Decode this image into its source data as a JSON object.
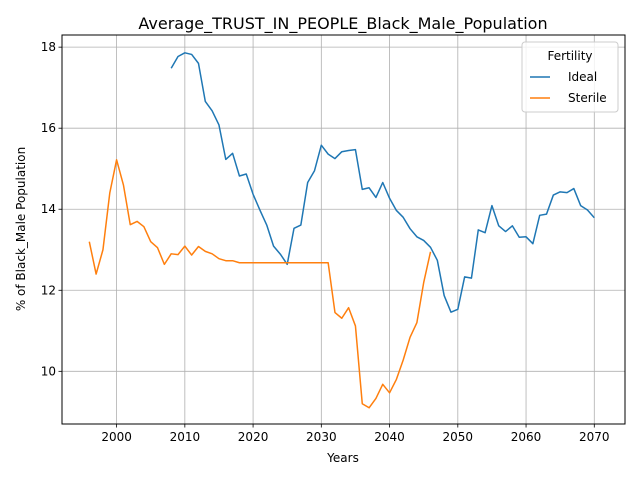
{
  "chart_data": {
    "type": "line",
    "title": "Average_TRUST_IN_PEOPLE_Black_Male_Population",
    "xlabel": "Years",
    "ylabel": "% of Black_Male Population",
    "xlim": [
      1992,
      2074.5
    ],
    "ylim": [
      8.7,
      18.3
    ],
    "xticks": [
      2000,
      2010,
      2020,
      2030,
      2040,
      2050,
      2060,
      2070
    ],
    "yticks": [
      10,
      12,
      14,
      16,
      18
    ],
    "grid": true,
    "legend": {
      "title": "Fertility",
      "placement": "top-right"
    },
    "series": [
      {
        "name": "Ideal",
        "color": "#1f77b4",
        "x": [
          2008,
          2009,
          2010,
          2011,
          2012,
          2013,
          2014,
          2015,
          2016,
          2017,
          2018,
          2019,
          2020,
          2021,
          2022,
          2023,
          2024,
          2025,
          2026,
          2027,
          2028,
          2029,
          2030,
          2031,
          2032,
          2033,
          2034,
          2035,
          2036,
          2037,
          2038,
          2039,
          2040,
          2041,
          2042,
          2043,
          2044,
          2045,
          2046,
          2047,
          2048,
          2049,
          2050,
          2051,
          2052,
          2053,
          2054,
          2055,
          2056,
          2057,
          2058,
          2059,
          2060,
          2061,
          2062,
          2063,
          2064,
          2065,
          2066,
          2067,
          2068,
          2069,
          2070
        ],
        "y": [
          17.48,
          17.77,
          17.86,
          17.82,
          17.6,
          16.66,
          16.43,
          16.08,
          15.23,
          15.38,
          14.82,
          14.87,
          14.37,
          13.98,
          13.61,
          13.09,
          12.89,
          12.64,
          13.53,
          13.61,
          14.66,
          14.95,
          15.58,
          15.36,
          15.25,
          15.42,
          15.45,
          15.47,
          14.49,
          14.53,
          14.29,
          14.66,
          14.27,
          13.97,
          13.8,
          13.52,
          13.32,
          13.23,
          13.06,
          12.74,
          11.87,
          11.46,
          11.53,
          12.33,
          12.3,
          13.49,
          13.42,
          14.09,
          13.59,
          13.45,
          13.59,
          13.31,
          13.32,
          13.15,
          13.85,
          13.88,
          14.35,
          14.43,
          14.41,
          14.51,
          14.09,
          13.98,
          13.79
        ]
      },
      {
        "name": "Sterile",
        "color": "#ff7f0e",
        "x": [
          1996,
          1997,
          1998,
          1999,
          2000,
          2001,
          2002,
          2003,
          2004,
          2005,
          2006,
          2007,
          2008,
          2009,
          2010,
          2011,
          2012,
          2013,
          2014,
          2015,
          2016,
          2017,
          2018,
          2019,
          2020,
          2021,
          2022,
          2023,
          2024,
          2025,
          2026,
          2027,
          2028,
          2029,
          2030,
          2031,
          2032,
          2033,
          2034,
          2035,
          2036,
          2037,
          2038,
          2039,
          2040,
          2041,
          2042,
          2043,
          2044,
          2045,
          2046
        ],
        "y": [
          13.2,
          12.4,
          13.0,
          14.4,
          15.22,
          14.6,
          13.62,
          13.7,
          13.57,
          13.2,
          13.05,
          12.64,
          12.9,
          12.88,
          13.09,
          12.87,
          13.08,
          12.96,
          12.9,
          12.78,
          12.73,
          12.73,
          12.68,
          12.68,
          12.68,
          12.68,
          12.68,
          12.68,
          12.68,
          12.68,
          12.68,
          12.68,
          12.68,
          12.68,
          12.68,
          12.68,
          11.45,
          11.31,
          11.57,
          11.12,
          9.2,
          9.1,
          9.33,
          9.68,
          9.47,
          9.8,
          10.28,
          10.84,
          11.2,
          12.19,
          12.95
        ]
      }
    ]
  }
}
